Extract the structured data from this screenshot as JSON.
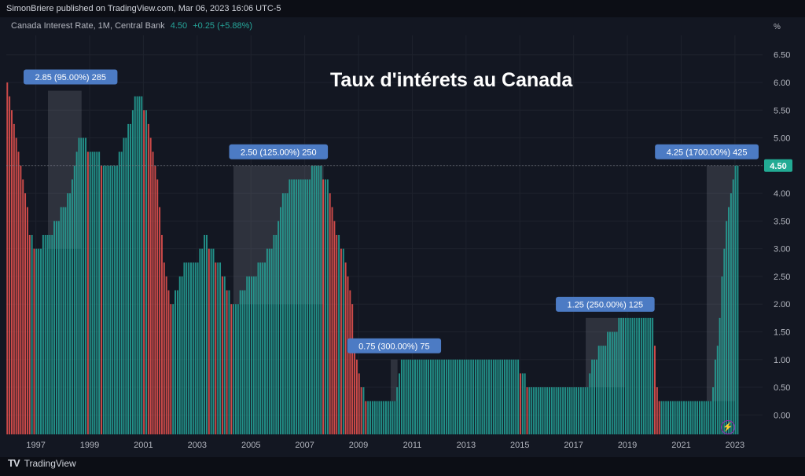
{
  "header": {
    "publisher_line": "SimonBriere published on TradingView.com, Mar 06, 2023 16:06 UTC-5"
  },
  "legend": {
    "symbol": "Canada Interest Rate, 1M, Central Bank",
    "last": "4.50",
    "change": "+0.25 (+5.88%)"
  },
  "footer": {
    "brand": "TradingView",
    "logo": "tradingview-logo-icon"
  },
  "overlay_icon": "lightning-icon",
  "chart_data": {
    "type": "bar",
    "title": "Taux d'intérets au Canada",
    "y_unit_label": "%",
    "ylim": [
      -0.35,
      6.85
    ],
    "y_ticks": [
      "6.50",
      "6.00",
      "5.50",
      "5.00",
      "4.50",
      "4.00",
      "3.50",
      "3.00",
      "2.50",
      "2.00",
      "1.50",
      "1.00",
      "0.50",
      "0.00"
    ],
    "x_range": [
      1996.0,
      2023.25
    ],
    "x_ticks": [
      "1997",
      "1999",
      "2001",
      "2003",
      "2005",
      "2007",
      "2009",
      "2011",
      "2013",
      "2015",
      "2017",
      "2019",
      "2021",
      "2023"
    ],
    "last_value_label": "4.50",
    "colors": {
      "up": "#26a69a",
      "down": "#ef5350",
      "label_bg": "#4c7bc4",
      "last_bg": "#22ab94"
    },
    "rate_path": [
      [
        1996.0,
        6.1
      ],
      [
        1996.35,
        5.0
      ],
      [
        1996.6,
        4.2
      ],
      [
        1996.85,
        3.3
      ],
      [
        1997.0,
        3.0
      ],
      [
        1997.55,
        3.25
      ],
      [
        1997.85,
        3.5
      ],
      [
        1998.3,
        4.0
      ],
      [
        1998.65,
        5.0
      ],
      [
        1998.9,
        4.9
      ],
      [
        1999.25,
        4.75
      ],
      [
        1999.7,
        4.5
      ],
      [
        2000.05,
        4.5
      ],
      [
        2000.3,
        4.9
      ],
      [
        2000.55,
        5.25
      ],
      [
        2000.8,
        5.75
      ],
      [
        2001.0,
        5.75
      ],
      [
        2001.35,
        5.0
      ],
      [
        2001.6,
        4.25
      ],
      [
        2001.85,
        2.75
      ],
      [
        2002.05,
        2.0
      ],
      [
        2002.35,
        2.25
      ],
      [
        2002.6,
        2.75
      ],
      [
        2003.1,
        2.75
      ],
      [
        2003.3,
        3.25
      ],
      [
        2003.55,
        3.0
      ],
      [
        2003.9,
        2.75
      ],
      [
        2004.2,
        2.25
      ],
      [
        2004.45,
        2.0
      ],
      [
        2004.75,
        2.25
      ],
      [
        2005.05,
        2.5
      ],
      [
        2005.55,
        2.75
      ],
      [
        2005.95,
        3.25
      ],
      [
        2006.3,
        4.0
      ],
      [
        2006.6,
        4.25
      ],
      [
        2007.0,
        4.25
      ],
      [
        2007.5,
        4.5
      ],
      [
        2007.9,
        4.25
      ],
      [
        2008.15,
        3.5
      ],
      [
        2008.45,
        3.0
      ],
      [
        2008.8,
        2.25
      ],
      [
        2008.95,
        1.0
      ],
      [
        2009.2,
        0.5
      ],
      [
        2009.35,
        0.25
      ],
      [
        2010.4,
        0.25
      ],
      [
        2010.45,
        0.5
      ],
      [
        2010.55,
        0.75
      ],
      [
        2010.7,
        1.0
      ],
      [
        2014.95,
        1.0
      ],
      [
        2015.1,
        0.75
      ],
      [
        2015.55,
        0.5
      ],
      [
        2017.55,
        0.5
      ],
      [
        2017.65,
        0.75
      ],
      [
        2017.8,
        1.0
      ],
      [
        2018.05,
        1.25
      ],
      [
        2018.5,
        1.5
      ],
      [
        2018.85,
        1.75
      ],
      [
        2020.0,
        1.75
      ],
      [
        2020.2,
        0.25
      ],
      [
        2022.15,
        0.25
      ],
      [
        2022.25,
        0.5
      ],
      [
        2022.35,
        1.0
      ],
      [
        2022.45,
        1.5
      ],
      [
        2022.6,
        2.5
      ],
      [
        2022.7,
        3.25
      ],
      [
        2022.85,
        3.75
      ],
      [
        2022.95,
        4.25
      ],
      [
        2023.1,
        4.5
      ],
      [
        2023.2,
        4.5
      ]
    ],
    "annotations": [
      {
        "label": "2.85 (95.00%) 285",
        "x0": 1997.55,
        "x1": 1998.8,
        "from": 3.0,
        "to": 5.85
      },
      {
        "label": "2.50 (125.00%) 250",
        "x0": 2004.45,
        "x1": 2007.8,
        "from": 2.0,
        "to": 4.5
      },
      {
        "label": "0.75 (300.00%) 75",
        "x0": 2010.3,
        "x1": 2010.55,
        "from": 0.25,
        "to": 1.0
      },
      {
        "label": "1.25 (250.00%) 125",
        "x0": 2017.55,
        "x1": 2019.0,
        "from": 0.5,
        "to": 1.75
      },
      {
        "label": "4.25 (1700.00%) 425",
        "x0": 2022.05,
        "x1": 2023.1,
        "from": 0.25,
        "to": 4.5
      }
    ]
  }
}
